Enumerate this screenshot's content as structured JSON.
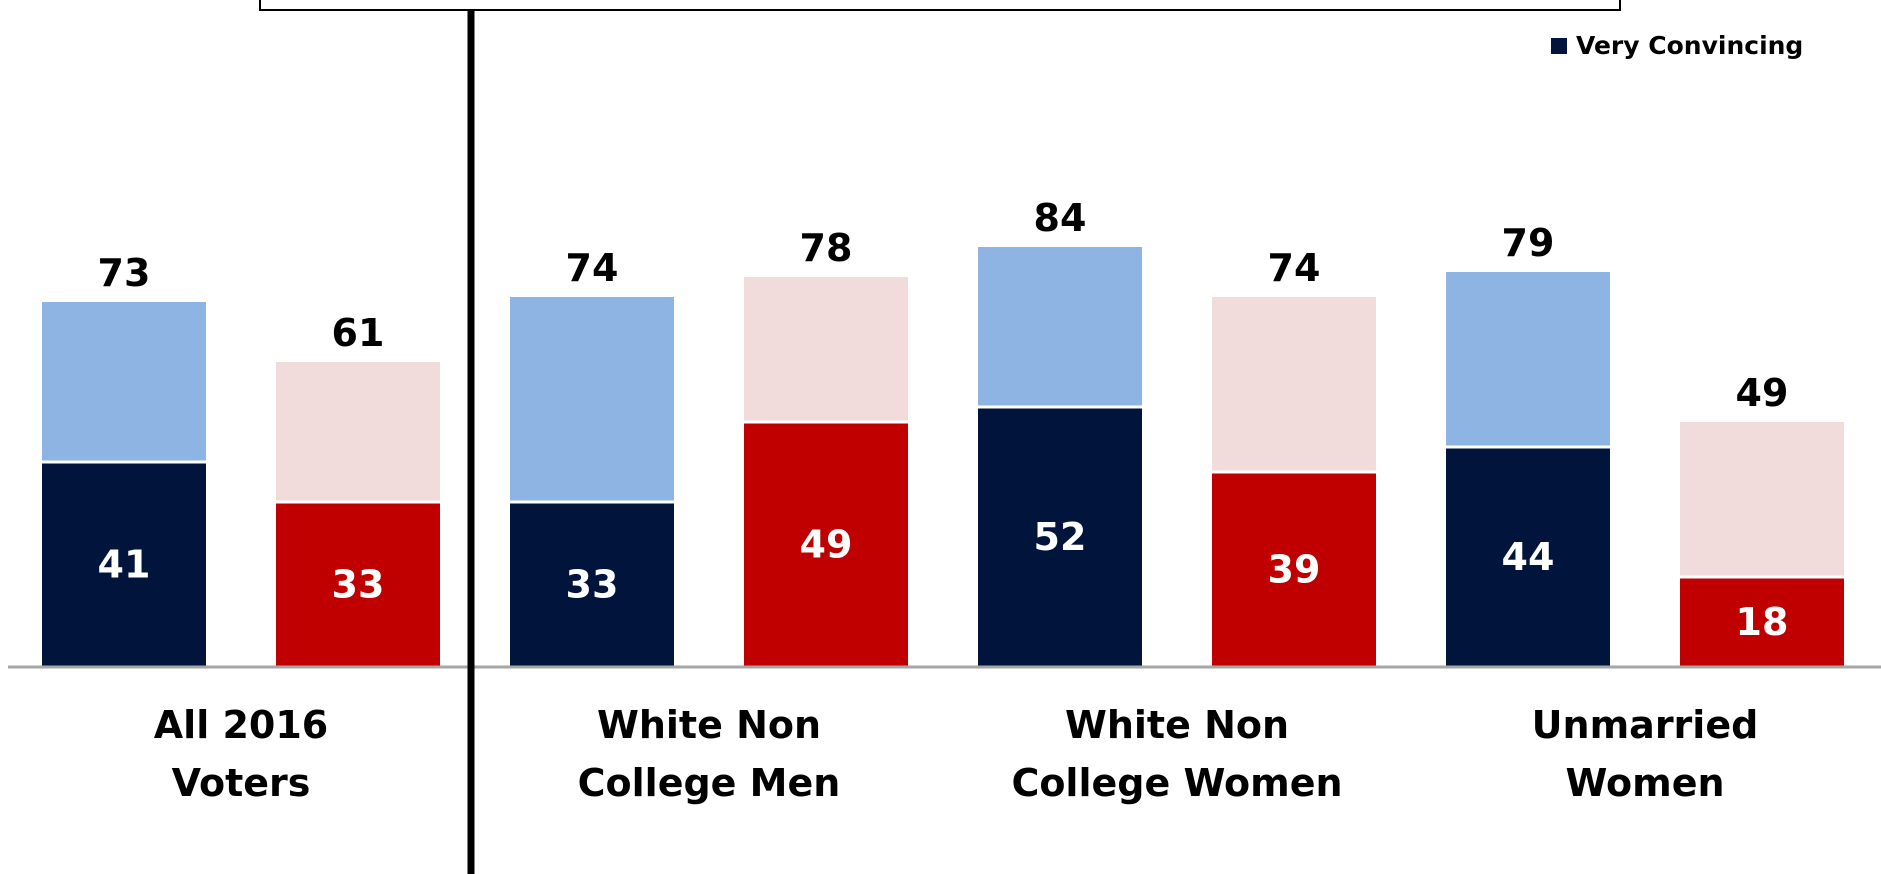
{
  "chart_data": {
    "type": "bar",
    "stacked": true,
    "title": "",
    "xlabel": "",
    "ylabel": "",
    "ylim": [
      0,
      100
    ],
    "legend": {
      "placement": "top-right",
      "entries": [
        {
          "label": "Very Convincing",
          "color": "#00143C"
        }
      ]
    },
    "groups": [
      {
        "label_lines": [
          "All 2016",
          "Voters"
        ],
        "bars": [
          {
            "party": "Democrat",
            "very": 41,
            "total": 73,
            "dark_color": "#00143C",
            "light_color": "#8EB4E3"
          },
          {
            "party": "Republican",
            "very": 33,
            "total": 61,
            "dark_color": "#C00000",
            "light_color": "#F2DCDB"
          }
        ]
      },
      {
        "label_lines": [
          "White Non",
          "College Men"
        ],
        "bars": [
          {
            "party": "Democrat",
            "very": 33,
            "total": 74,
            "dark_color": "#00143C",
            "light_color": "#8EB4E3"
          },
          {
            "party": "Republican",
            "very": 49,
            "total": 78,
            "dark_color": "#C00000",
            "light_color": "#F2DCDB"
          }
        ]
      },
      {
        "label_lines": [
          "White Non",
          "College Women"
        ],
        "bars": [
          {
            "party": "Democrat",
            "very": 52,
            "total": 84,
            "dark_color": "#00143C",
            "light_color": "#8EB4E3"
          },
          {
            "party": "Republican",
            "very": 39,
            "total": 74,
            "dark_color": "#C00000",
            "light_color": "#F2DCDB"
          }
        ]
      },
      {
        "label_lines": [
          "Unmarried",
          "Women"
        ],
        "bars": [
          {
            "party": "Democrat",
            "very": 44,
            "total": 79,
            "dark_color": "#00143C",
            "light_color": "#8EB4E3"
          },
          {
            "party": "Republican",
            "very": 18,
            "total": 49,
            "dark_color": "#C00000",
            "light_color": "#F2DCDB"
          }
        ]
      }
    ]
  }
}
